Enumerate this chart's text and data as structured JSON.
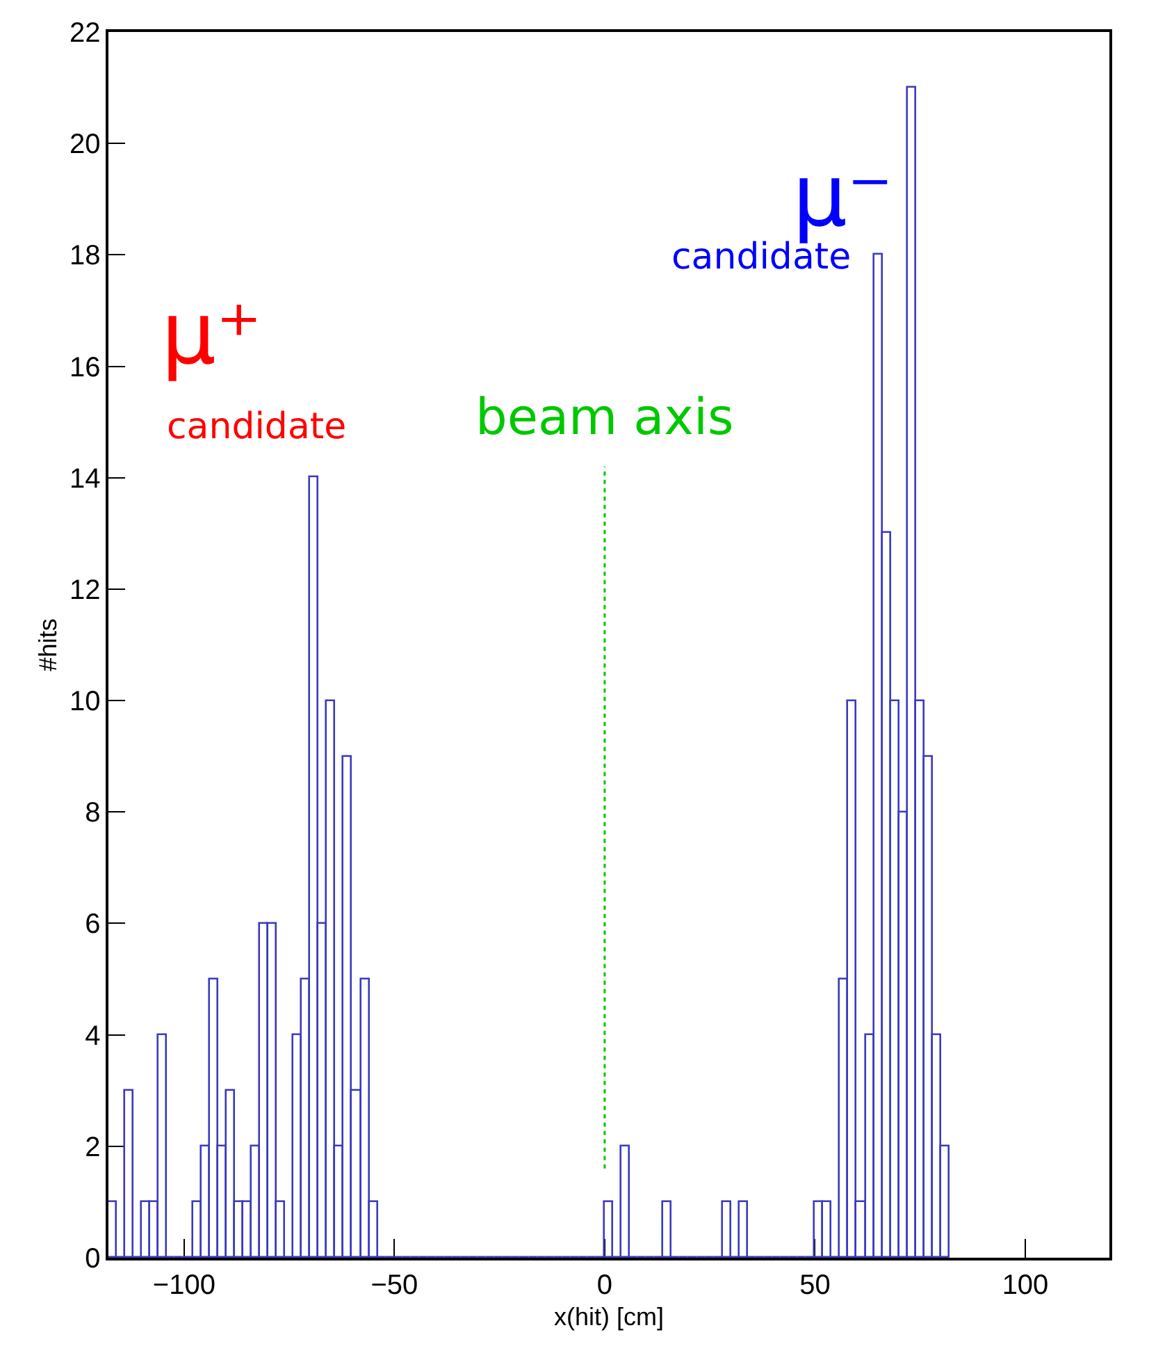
{
  "chart_data": {
    "type": "histogram",
    "xlabel": "x(hit) [cm]",
    "ylabel": "#hits",
    "bins": [
      -118,
      -116,
      -114,
      -112,
      -110,
      -108,
      -106,
      -104,
      -102,
      -100,
      -98,
      -96,
      -94,
      -92,
      -90,
      -88,
      -86,
      -84,
      -82,
      -80,
      -78,
      -76,
      -74,
      -72,
      -70,
      -68,
      -66,
      -64,
      -62,
      -60,
      -58,
      -56,
      -54,
      -52,
      -50,
      -48,
      -46,
      -44,
      -42,
      -40,
      -38,
      -36,
      -34,
      -32,
      -30,
      -28,
      -26,
      -24,
      -22,
      -20,
      -18,
      -16,
      -14,
      -12,
      -10,
      -8,
      -6,
      -4,
      -2,
      0,
      2,
      4,
      6,
      8,
      10,
      12,
      14,
      16,
      18,
      20,
      22,
      24,
      26,
      28,
      30,
      32,
      34,
      36,
      38,
      40,
      42,
      44,
      46,
      48,
      50,
      52,
      54,
      56,
      58,
      60,
      62,
      64,
      66,
      68,
      70,
      72,
      74,
      76,
      78,
      80,
      82
    ],
    "values": [
      1,
      0,
      3,
      0,
      1,
      1,
      4,
      0,
      0,
      0,
      1,
      2,
      5,
      2,
      3,
      1,
      1,
      2,
      6,
      6,
      1,
      0,
      4,
      5,
      14,
      6,
      10,
      2,
      9,
      3,
      5,
      1,
      0,
      0,
      0,
      0,
      0,
      0,
      0,
      0,
      0,
      0,
      0,
      0,
      0,
      0,
      0,
      0,
      0,
      0,
      0,
      0,
      0,
      0,
      0,
      0,
      0,
      0,
      0,
      1,
      0,
      2,
      0,
      0,
      0,
      0,
      1,
      0,
      0,
      0,
      0,
      0,
      0,
      1,
      0,
      1,
      0,
      0,
      0,
      0,
      0,
      0,
      0,
      0,
      1,
      1,
      0,
      5,
      10,
      1,
      4,
      18,
      13,
      10,
      8,
      21,
      10,
      9,
      4,
      2
    ],
    "color": "#3a3ac0",
    "series": [
      {
        "type": "line",
        "name": "beam axis",
        "color": "#00c800",
        "line_style": "dotted",
        "x": [
          0,
          0
        ],
        "values": [
          1.6,
          14.2
        ]
      }
    ],
    "annotations": [
      "μ⁺",
      "candidate",
      "μ⁻",
      "candidate"
    ],
    "xlim": [
      -118,
      120
    ],
    "xticks": [
      -100,
      -50,
      0,
      50,
      100
    ],
    "ylim": [
      0,
      22
    ],
    "yticks": [
      0,
      2,
      4,
      6,
      8,
      10,
      12,
      14,
      16,
      18,
      20,
      22
    ],
    "grid": false,
    "legend": false
  }
}
